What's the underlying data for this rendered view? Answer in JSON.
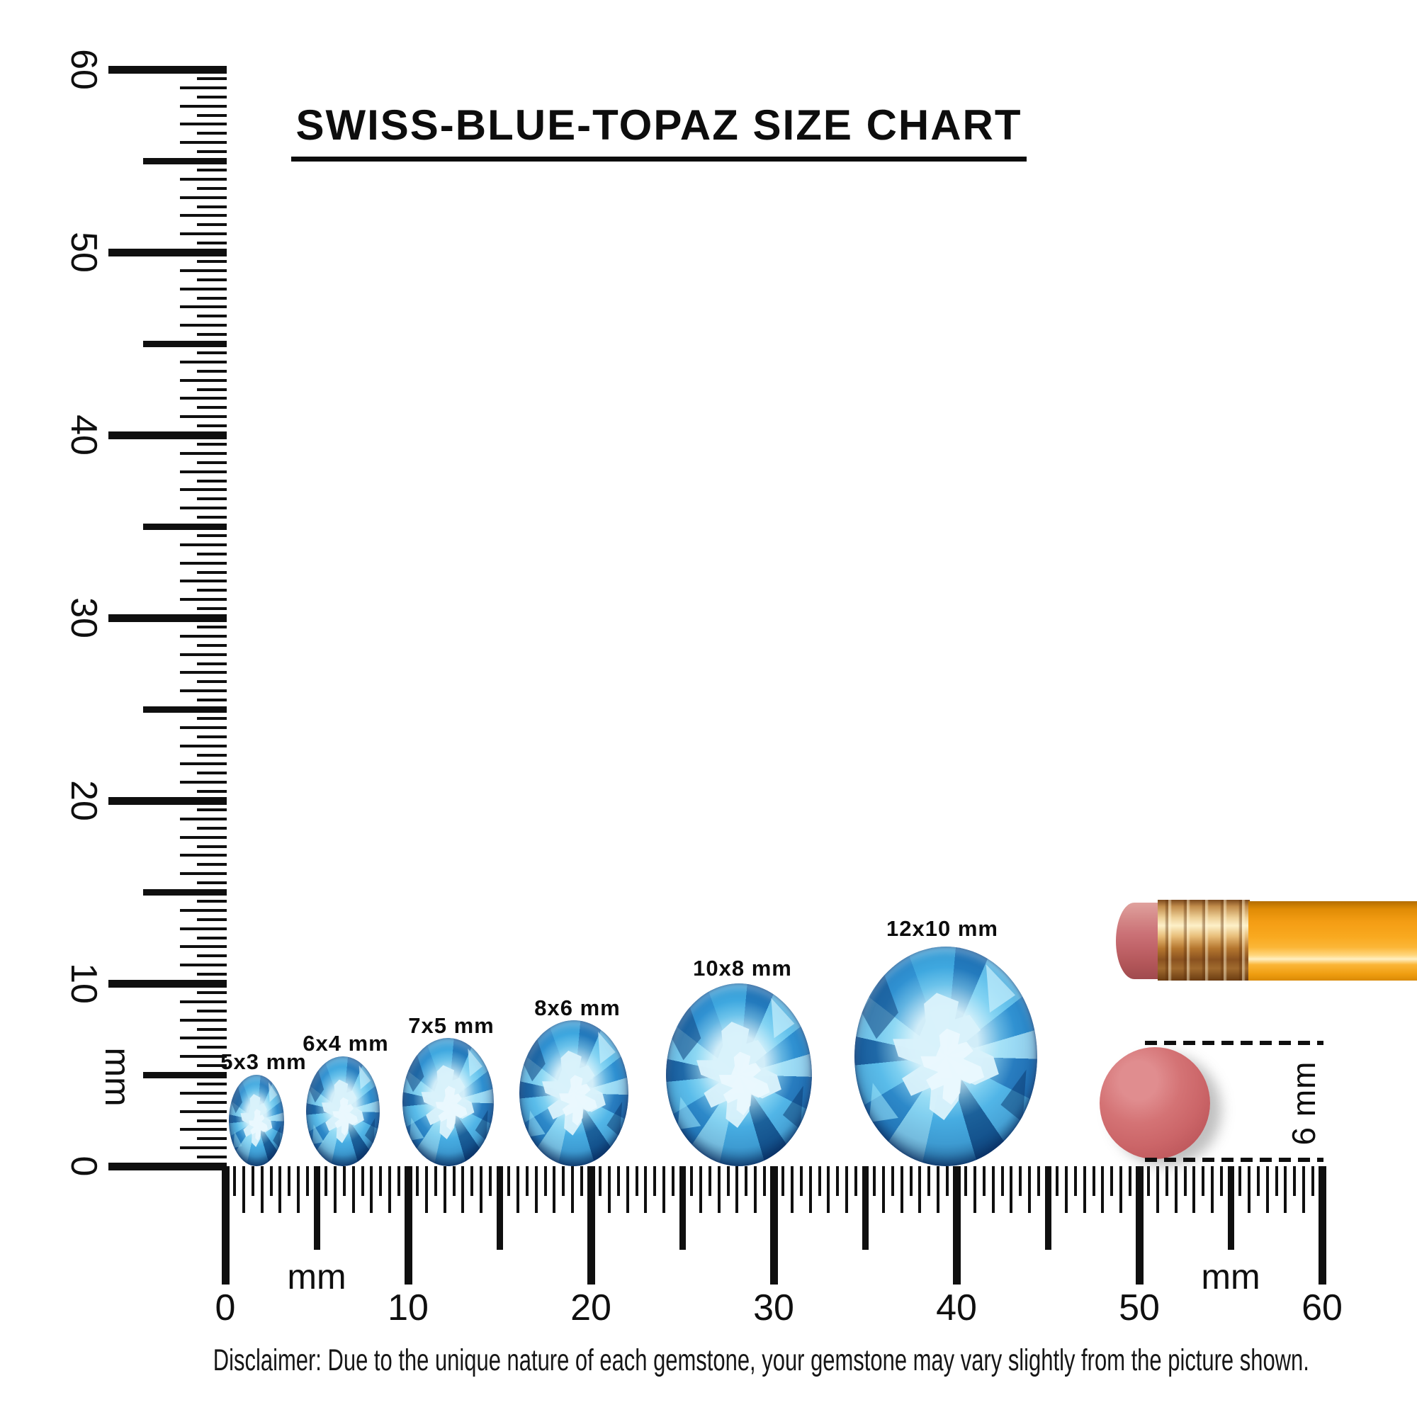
{
  "title": {
    "text": "SWISS-BLUE-TOPAZ SIZE CHART"
  },
  "vertical_ruler": {
    "unit_label": "mm",
    "min_mm": 0,
    "max_mm": 60,
    "tick_step_mm": 0.5,
    "major_labels": [
      "0",
      "10",
      "20",
      "30",
      "40",
      "50",
      "60"
    ]
  },
  "horizontal_ruler": {
    "unit_label_left": "mm",
    "unit_label_right": "mm",
    "min_mm": 0,
    "max_mm": 60,
    "tick_step_mm": 0.5,
    "major_labels": [
      "0",
      "10",
      "20",
      "30",
      "40",
      "50",
      "60"
    ]
  },
  "gems": [
    {
      "label": "5x3 mm",
      "long_mm": 5,
      "wide_mm": 3
    },
    {
      "label": "6x4 mm",
      "long_mm": 6,
      "wide_mm": 4
    },
    {
      "label": "7x5 mm",
      "long_mm": 7,
      "wide_mm": 5
    },
    {
      "label": "8x6 mm",
      "long_mm": 8,
      "wide_mm": 6
    },
    {
      "label": "10x8 mm",
      "long_mm": 10,
      "wide_mm": 8
    },
    {
      "label": "12x10 mm",
      "long_mm": 12,
      "wide_mm": 10
    }
  ],
  "reference_objects": {
    "pencil": {
      "icon": "pencil-icon"
    },
    "eraser_dot": {
      "icon": "eraser-end-icon",
      "diameter_label": "6 mm",
      "diameter_mm": 6
    }
  },
  "disclaimer": {
    "text": "Disclaimer: Due to the unique nature of each gemstone, your gemstone may vary slightly from the picture shown."
  },
  "colors": {
    "ink": "#0f0f0f",
    "gem_primary": "#35a3de",
    "gem_light": "#d8f1fb",
    "gem_dark": "#16568f",
    "pencil_body": "#f9a91f",
    "pencil_ferrule": "#e8be7a",
    "pencil_eraser": "#c06368",
    "eraser_dot": "#cb6568"
  }
}
